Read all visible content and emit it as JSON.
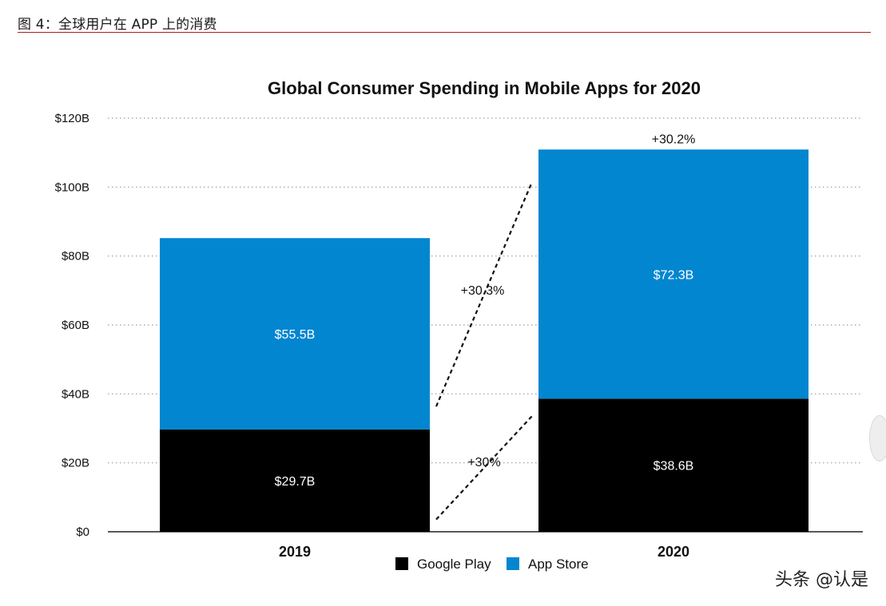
{
  "caption": "图 4：全球用户在 APP 上的消费",
  "watermark": "头条 @认是",
  "colors": {
    "google_play": "#000000",
    "app_store": "#0286d0",
    "caption_rule": "#b01c1c",
    "grid": "#9a9a9a"
  },
  "chart_data": {
    "type": "bar",
    "stacked": true,
    "title": "Global Consumer Spending in Mobile Apps for 2020",
    "xlabel": "",
    "ylabel": "",
    "categories": [
      "2019",
      "2020"
    ],
    "ylim": [
      0,
      120
    ],
    "yticks": [
      0,
      20,
      40,
      60,
      80,
      100,
      120
    ],
    "ytick_labels": [
      "$0",
      "$20B",
      "$40B",
      "$60B",
      "$80B",
      "$100B",
      "$120B"
    ],
    "grid": true,
    "series": [
      {
        "name": "Google Play",
        "color": "#000000",
        "values": [
          29.7,
          38.6
        ],
        "labels": [
          "$29.7B",
          "$38.6B"
        ]
      },
      {
        "name": "App Store",
        "color": "#0286d0",
        "values": [
          55.5,
          72.3
        ],
        "labels": [
          "$55.5B",
          "$72.3B"
        ]
      }
    ],
    "total_growth_label": "+30.2%",
    "growth_annotations": [
      {
        "series": "Google Play",
        "label": "+30%"
      },
      {
        "series": "App Store",
        "label": "+30.3%"
      }
    ],
    "legend_position": "bottom-center"
  }
}
